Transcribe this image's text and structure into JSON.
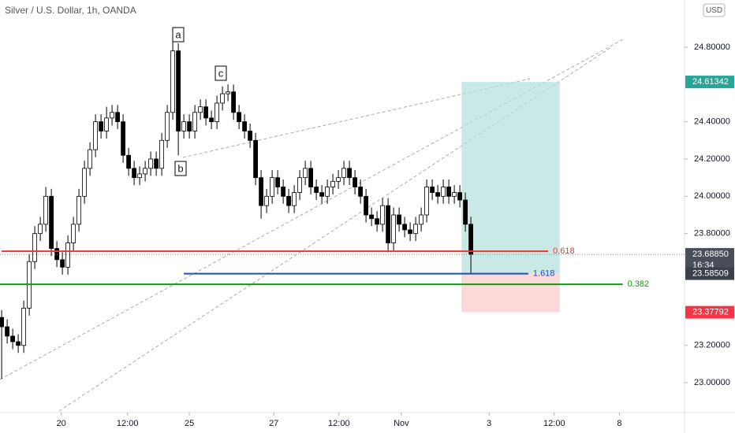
{
  "chart_data": {
    "type": "candlestick",
    "title": "Silver / U.S. Dollar, 1h, OANDA",
    "currency": "USD",
    "open": [
      23.35,
      23.3,
      23.25,
      23.22,
      23.2,
      23.4,
      23.65,
      23.8,
      23.85,
      24.0,
      23.72,
      23.66,
      23.62,
      23.75,
      23.85,
      24.0,
      24.15,
      24.25,
      24.4,
      24.35,
      24.42,
      24.45,
      24.4,
      24.22,
      24.15,
      24.1,
      24.12,
      24.15,
      24.2,
      24.15,
      24.3,
      24.45,
      24.78,
      24.35,
      24.4,
      24.35,
      24.45,
      24.48,
      24.42,
      24.4,
      24.5,
      24.55,
      24.56,
      24.45,
      24.4,
      24.35,
      24.3,
      24.1,
      23.95,
      24.0,
      24.1,
      24.05,
      24.0,
      23.95,
      24.02,
      24.1,
      24.15,
      24.05,
      24.02,
      24.0,
      24.05,
      24.08,
      24.1,
      24.15,
      24.1,
      24.05,
      24.0,
      23.9,
      23.88,
      23.85,
      23.95,
      23.75,
      23.9,
      23.85,
      23.82,
      23.8,
      23.85,
      23.9,
      24.05,
      24.02,
      24.0,
      24.05,
      24.0,
      24.02,
      23.98,
      23.85
    ],
    "high": [
      23.39,
      23.34,
      23.29,
      23.26,
      23.44,
      23.69,
      23.84,
      23.89,
      24.05,
      24.04,
      23.76,
      23.7,
      23.79,
      23.89,
      24.04,
      24.19,
      24.29,
      24.44,
      24.44,
      24.48,
      24.49,
      24.49,
      24.44,
      24.26,
      24.19,
      24.16,
      24.19,
      24.24,
      24.24,
      24.34,
      24.49,
      24.85,
      24.82,
      24.44,
      24.44,
      24.49,
      24.52,
      24.52,
      24.46,
      24.54,
      24.59,
      24.6,
      24.6,
      24.49,
      24.44,
      24.39,
      24.34,
      24.14,
      24.04,
      24.14,
      24.14,
      24.09,
      24.04,
      24.06,
      24.14,
      24.19,
      24.19,
      24.09,
      24.06,
      24.09,
      24.12,
      24.14,
      24.19,
      24.19,
      24.14,
      24.09,
      24.04,
      23.94,
      23.92,
      23.99,
      23.99,
      23.94,
      23.94,
      23.89,
      23.86,
      23.89,
      23.94,
      24.09,
      24.09,
      24.06,
      24.09,
      24.09,
      24.06,
      24.06,
      24.02,
      23.89
    ],
    "low": [
      23.02,
      23.21,
      23.18,
      23.16,
      23.16,
      23.36,
      23.61,
      23.76,
      23.81,
      23.68,
      23.62,
      23.58,
      23.58,
      23.71,
      23.81,
      23.96,
      24.11,
      24.21,
      24.31,
      24.31,
      24.38,
      24.36,
      24.18,
      24.11,
      24.06,
      24.06,
      24.08,
      24.11,
      24.11,
      24.11,
      24.26,
      24.41,
      24.22,
      24.31,
      24.31,
      24.31,
      24.41,
      24.38,
      24.36,
      24.36,
      24.46,
      24.51,
      24.41,
      24.36,
      24.31,
      24.26,
      24.06,
      23.88,
      23.91,
      23.96,
      24.01,
      23.96,
      23.91,
      23.91,
      23.98,
      24.06,
      24.01,
      23.98,
      23.96,
      23.96,
      24.01,
      24.04,
      24.06,
      24.06,
      24.01,
      23.96,
      23.86,
      23.84,
      23.81,
      23.81,
      23.7,
      23.71,
      23.81,
      23.78,
      23.76,
      23.76,
      23.81,
      23.86,
      23.98,
      23.96,
      23.96,
      23.96,
      23.96,
      23.94,
      23.81,
      23.585
    ],
    "close": [
      23.3,
      23.25,
      23.22,
      23.2,
      23.4,
      23.65,
      23.8,
      23.85,
      24.0,
      23.72,
      23.66,
      23.62,
      23.75,
      23.85,
      24.0,
      24.15,
      24.25,
      24.4,
      24.35,
      24.42,
      24.45,
      24.4,
      24.22,
      24.15,
      24.1,
      24.12,
      24.15,
      24.2,
      24.15,
      24.3,
      24.45,
      24.78,
      24.35,
      24.4,
      24.35,
      24.45,
      24.48,
      24.42,
      24.4,
      24.5,
      24.55,
      24.56,
      24.45,
      24.4,
      24.35,
      24.3,
      24.1,
      23.95,
      24.0,
      24.1,
      24.05,
      24.0,
      23.95,
      24.02,
      24.1,
      24.15,
      24.05,
      24.02,
      24.0,
      24.05,
      24.08,
      24.1,
      24.15,
      24.1,
      24.05,
      24.0,
      23.9,
      23.88,
      23.85,
      23.95,
      23.75,
      23.9,
      23.85,
      23.82,
      23.8,
      23.85,
      23.9,
      24.05,
      24.02,
      24.0,
      24.05,
      24.0,
      24.02,
      23.98,
      23.85,
      23.6885
    ],
    "up_color": "#ffffff",
    "down_color": "#000000",
    "xlim": [
      -0.3,
      123.7
    ],
    "ylim": [
      22.84,
      25.053
    ],
    "xticks": [
      {
        "value": 10.8,
        "label": "20"
      },
      {
        "value": 22.8,
        "label": "12:00"
      },
      {
        "value": 34,
        "label": "25"
      },
      {
        "value": 49.3,
        "label": "27"
      },
      {
        "value": 61.1,
        "label": "12:00"
      },
      {
        "value": 72.4,
        "label": "Nov"
      },
      {
        "value": 88.3,
        "label": "3"
      },
      {
        "value": 100.1,
        "label": "12:00"
      },
      {
        "value": 111.9,
        "label": "8"
      }
    ],
    "yticks": [
      {
        "value": 23.0,
        "label": "23.00000"
      },
      {
        "value": 23.2,
        "label": "23.20000"
      },
      {
        "value": 23.8,
        "label": "23.80000"
      },
      {
        "value": 24.0,
        "label": "24.00000"
      },
      {
        "value": 24.2,
        "label": "24.20000"
      },
      {
        "value": 24.4,
        "label": "24.40000"
      },
      {
        "value": 24.8,
        "label": "24.80000"
      }
    ],
    "levels": [
      {
        "label": "0.618",
        "value": 23.705,
        "x": [
          0,
          99
        ],
        "color": "#e53935"
      },
      {
        "label": "1.618",
        "value": 23.585,
        "x": [
          33,
          95.4
        ],
        "color": "#1e4fb4"
      },
      {
        "label": "0.382",
        "value": 23.528,
        "x": [
          -0.3,
          112.5
        ],
        "color": "#0f9d0f"
      }
    ],
    "position": {
      "target": 24.61342,
      "entry": 23.58509,
      "stop": 23.37792,
      "x": [
        83.3,
        101.1
      ],
      "target_color": "#b2dfdb",
      "stop_color": "#fbd0cf"
    },
    "price_labels": [
      {
        "value": 24.61342,
        "label": "24.61342",
        "color": "#26a69a"
      },
      {
        "value": 23.6885,
        "label": "23.68850",
        "countdown": "16:34",
        "color": "#4a4e5a"
      },
      {
        "value": 23.58509,
        "label": "23.58509",
        "color": "#3b3f4a"
      },
      {
        "value": 23.37792,
        "label": "23.37792",
        "color": "#f23645"
      }
    ],
    "annotations": [
      "a",
      "b",
      "c"
    ]
  }
}
